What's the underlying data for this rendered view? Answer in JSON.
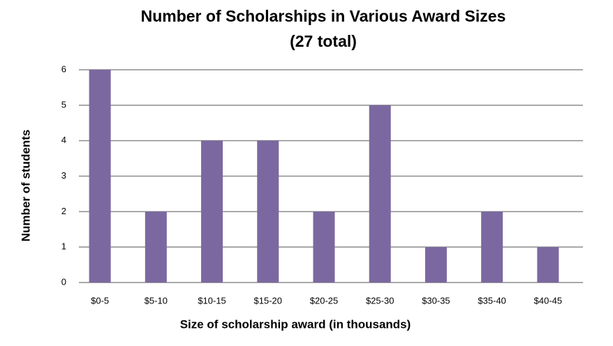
{
  "chart_data": {
    "type": "bar",
    "title": "Number of Scholarships in Various Award Sizes",
    "subtitle": "(27 total)",
    "x_label": "Size of scholarship award (in thousands)",
    "y_label": "Number of students",
    "categories": [
      "$0-5",
      "$5-10",
      "$10-15",
      "$15-20",
      "$20-25",
      "$25-30",
      "$30-35",
      "$35-40",
      "$40-45"
    ],
    "values": [
      6,
      2,
      4,
      4,
      2,
      5,
      1,
      2,
      1
    ],
    "color": "#7b68a0",
    "ylim": [
      0,
      6
    ],
    "yticks": [
      0,
      1,
      2,
      3,
      4,
      5,
      6
    ],
    "grid": true
  }
}
